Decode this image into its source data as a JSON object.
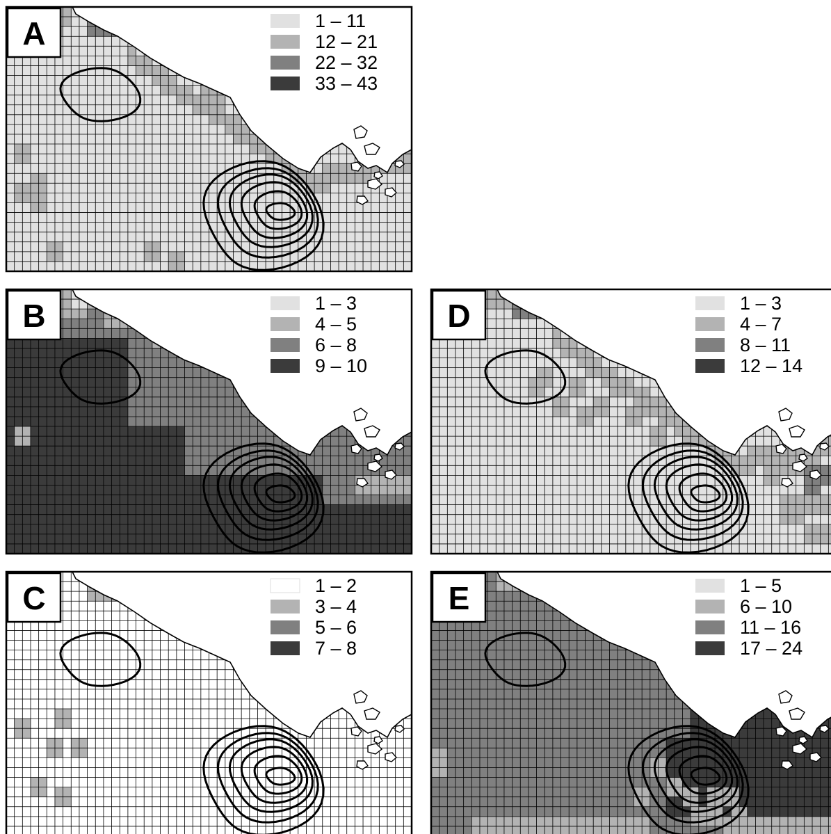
{
  "figure": {
    "panels": [
      {
        "label": "A",
        "legend": [
          "1 – 11",
          "12 – 21",
          "22 – 32",
          "33 – 43"
        ],
        "legend_colors": [
          "#e1e1e1",
          "#b3b3b3",
          "#808080",
          "#3b3b3b"
        ],
        "background_class": 0,
        "shelf_class": 1,
        "patches": [
          {
            "cells": [
              [
                2,
                0
              ],
              [
                3,
                0
              ],
              [
                4,
                0
              ],
              [
                3,
                1
              ]
            ],
            "class": 1
          },
          {
            "cells": [
              [
                6,
                0
              ],
              [
                7,
                0
              ],
              [
                6,
                1
              ],
              [
                7,
                1
              ],
              [
                8,
                0
              ]
            ],
            "class": 2
          },
          {
            "cells": [
              [
                7,
                0
              ]
            ],
            "class": 3
          },
          {
            "cells": [
              [
                14,
                6
              ],
              [
                15,
                6
              ],
              [
                15,
                7
              ]
            ],
            "class": 1
          },
          {
            "cells": [
              [
                1,
                10
              ],
              [
                1,
                13
              ],
              [
                2,
                14
              ],
              [
                3,
                17
              ],
              [
                2,
                12
              ]
            ],
            "class": 1
          },
          {
            "cells": [
              [
                12,
                18
              ],
              [
                10,
                17
              ]
            ],
            "class": 1
          }
        ]
      },
      {
        "label": "B",
        "legend": [
          "1 – 3",
          "4 – 5",
          "6 – 8",
          "9 – 10"
        ],
        "legend_colors": [
          "#e1e1e1",
          "#b3b3b3",
          "#808080",
          "#3b3b3b"
        ],
        "background_class": 2,
        "shelf_class": 2,
        "patches": [
          {
            "cells": [
              [
                0,
                0
              ],
              [
                1,
                0
              ],
              [
                2,
                0
              ],
              [
                3,
                0
              ],
              [
                0,
                1
              ],
              [
                1,
                1
              ],
              [
                2,
                1
              ],
              [
                3,
                1
              ],
              [
                4,
                0
              ],
              [
                4,
                1
              ],
              [
                5,
                0
              ],
              [
                6,
                0
              ],
              [
                5,
                1
              ]
            ],
            "class": 1
          },
          {
            "cells": [
              [
                7,
                1
              ],
              [
                8,
                1
              ],
              [
                9,
                1
              ],
              [
                7,
                2
              ],
              [
                8,
                2
              ],
              [
                9,
                2
              ],
              [
                10,
                2
              ],
              [
                11,
                3
              ],
              [
                12,
                3
              ],
              [
                13,
                3
              ],
              [
                14,
                4
              ],
              [
                15,
                4
              ]
            ],
            "class": 1
          },
          {
            "cells": [
              [
                5,
                0
              ]
            ],
            "class": 0
          },
          {
            "rect": [
              0,
              4,
              8,
              19
            ],
            "class": 3
          },
          {
            "rect": [
              0,
              10,
              12,
              19
            ],
            "class": 3
          },
          {
            "rect": [
              0,
              14,
              22,
              19
            ],
            "class": 3
          },
          {
            "rect": [
              22,
              16,
              28,
              19
            ],
            "class": 3
          },
          {
            "cells": [
              [
                1,
                10
              ]
            ],
            "class": 1
          },
          {
            "cells": [
              [
                25,
                14
              ],
              [
                26,
                14
              ],
              [
                27,
                14
              ],
              [
                28,
                14
              ]
            ],
            "class": 1
          }
        ]
      },
      {
        "label": "C",
        "legend": [
          "1 – 2",
          "3 – 4",
          "5 – 6",
          "7 – 8"
        ],
        "legend_colors": [
          "#ffffff",
          "#b3b3b3",
          "#808080",
          "#3b3b3b"
        ],
        "background_class": 0,
        "shelf_class": 0,
        "patches": [
          {
            "cells": [
              [
                6,
                0
              ],
              [
                7,
                0
              ],
              [
                8,
                0
              ],
              [
                7,
                1
              ],
              [
                8,
                1
              ],
              [
                9,
                1
              ],
              [
                10,
                1
              ],
              [
                6,
                1
              ]
            ],
            "class": 1
          },
          {
            "cells": [
              [
                7,
                0
              ]
            ],
            "class": 3
          },
          {
            "rect": [
              13,
              4,
              17,
              7
            ],
            "class": -1
          },
          {
            "rect": [
              24,
              8,
              28,
              13
            ],
            "class": -1
          },
          {
            "cells": [
              [
                4,
                10
              ],
              [
                1,
                11
              ],
              [
                3,
                12
              ],
              [
                5,
                12
              ],
              [
                2,
                15
              ],
              [
                4,
                16
              ]
            ],
            "class": 1
          }
        ]
      },
      {
        "label": "D",
        "legend": [
          "1 – 3",
          "4 – 7",
          "8 – 11",
          "12 – 14"
        ],
        "legend_colors": [
          "#e1e1e1",
          "#b3b3b3",
          "#808080",
          "#3b3b3b"
        ],
        "background_class": 0,
        "shelf_class": 1,
        "patches": [
          {
            "cells": [
              [
                4,
                0
              ],
              [
                5,
                0
              ],
              [
                6,
                0
              ],
              [
                7,
                0
              ],
              [
                8,
                0
              ],
              [
                9,
                0
              ],
              [
                10,
                0
              ],
              [
                11,
                0
              ],
              [
                12,
                0
              ],
              [
                13,
                0
              ],
              [
                14,
                0
              ],
              [
                15,
                0
              ],
              [
                16,
                0
              ],
              [
                17,
                0
              ],
              [
                18,
                0
              ]
            ],
            "class": 1
          },
          {
            "cells": [
              [
                9,
                1
              ],
              [
                10,
                1
              ],
              [
                11,
                1
              ],
              [
                12,
                1
              ],
              [
                13,
                1
              ],
              [
                14,
                1
              ],
              [
                15,
                1
              ],
              [
                16,
                1
              ]
            ],
            "class": 1
          },
          {
            "cells": [
              [
                8,
                6
              ],
              [
                10,
                7
              ],
              [
                12,
                8
              ],
              [
                14,
                9
              ],
              [
                13,
                7
              ],
              [
                15,
                8
              ],
              [
                16,
                10
              ],
              [
                11,
                9
              ],
              [
                9,
                8
              ],
              [
                7,
                7
              ],
              [
                17,
                9
              ],
              [
                18,
                10
              ]
            ],
            "class": 1
          },
          {
            "cells": [
              [
                6,
                1
              ],
              [
                7,
                1
              ],
              [
                8,
                1
              ],
              [
                9,
                0
              ]
            ],
            "class": 2
          },
          {
            "cells": [
              [
                25,
                12
              ],
              [
                26,
                12
              ],
              [
                27,
                12
              ],
              [
                24,
                13
              ],
              [
                25,
                15
              ],
              [
                26,
                15
              ],
              [
                27,
                15
              ],
              [
                28,
                15
              ],
              [
                25,
                16
              ],
              [
                26,
                16
              ],
              [
                27,
                17
              ],
              [
                28,
                17
              ]
            ],
            "class": 1
          },
          {
            "cells": [
              [
                27,
                13
              ],
              [
                28,
                13
              ],
              [
                27,
                14
              ]
            ],
            "class": 2
          }
        ]
      },
      {
        "label": "E",
        "legend": [
          "1 – 5",
          "6 – 10",
          "11 – 16",
          "17 – 24"
        ],
        "legend_colors": [
          "#e1e1e1",
          "#b3b3b3",
          "#808080",
          "#3b3b3b"
        ],
        "background_class": 2,
        "shelf_class": 2,
        "patches": [
          {
            "cells": [
              [
                5,
                0
              ],
              [
                6,
                0
              ],
              [
                7,
                0
              ],
              [
                8,
                0
              ],
              [
                9,
                0
              ],
              [
                10,
                0
              ],
              [
                11,
                0
              ],
              [
                12,
                0
              ],
              [
                13,
                0
              ]
            ],
            "class": 1
          },
          {
            "rect": [
              19,
              10,
              28,
              17
            ],
            "class": 3
          },
          {
            "rect": [
              17,
              12,
              18,
              17
            ],
            "class": 3
          },
          {
            "rect": [
              24,
              8,
              28,
              10
            ],
            "class": 3
          },
          {
            "cells": [
              [
                16,
                14
              ],
              [
                17,
                15
              ],
              [
                18,
                16
              ],
              [
                19,
                17
              ],
              [
                20,
                17
              ],
              [
                21,
                18
              ],
              [
                22,
                18
              ],
              [
                23,
                18
              ],
              [
                24,
                18
              ],
              [
                25,
                18
              ],
              [
                26,
                18
              ],
              [
                27,
                18
              ],
              [
                28,
                18
              ],
              [
                20,
                16
              ],
              [
                21,
                16
              ],
              [
                22,
                17
              ],
              [
                15,
                16
              ]
            ],
            "class": 1
          },
          {
            "cells": [
              [
                3,
                18
              ],
              [
                4,
                18
              ],
              [
                5,
                18
              ],
              [
                6,
                18
              ],
              [
                7,
                18
              ],
              [
                8,
                18
              ],
              [
                9,
                18
              ],
              [
                10,
                18
              ],
              [
                11,
                18
              ],
              [
                12,
                18
              ],
              [
                13,
                18
              ],
              [
                14,
                18
              ],
              [
                15,
                18
              ]
            ],
            "class": 1
          },
          {
            "cells": [
              [
                0,
                13
              ],
              [
                0,
                14
              ]
            ],
            "class": 1
          }
        ]
      }
    ]
  }
}
